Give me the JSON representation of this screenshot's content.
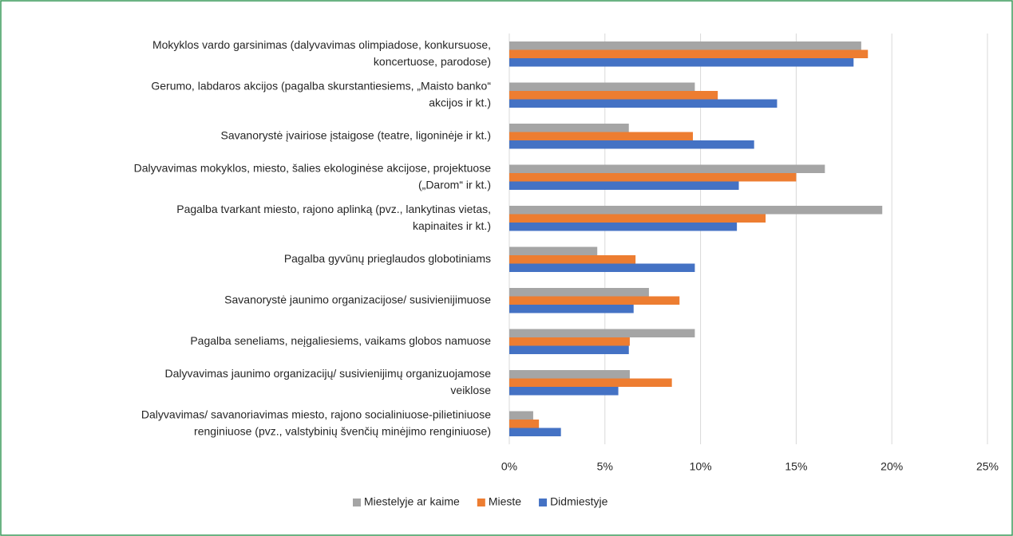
{
  "chart_data": {
    "type": "bar",
    "orientation": "horizontal",
    "categories": [
      [
        "Mokyklos vardo garsinimas (dalyvavimas olimpiadose, konkursuose,",
        "koncertuose, parodose)"
      ],
      [
        "Gerumo, labdaros akcijos (pagalba skurstantiesiems, „Maisto banko“",
        "akcijos ir kt.)"
      ],
      [
        "Savanorystė įvairiose įstaigose (teatre, ligoninėje ir kt.)"
      ],
      [
        "Dalyvavimas mokyklos, miesto, šalies ekologinėse akcijose, projektuose",
        "(„Darom“ ir kt.)"
      ],
      [
        "Pagalba tvarkant miesto, rajono aplinką (pvz., lankytinas vietas,",
        "kapinaites ir kt.)"
      ],
      [
        "Pagalba gyvūnų prieglaudos globotiniams"
      ],
      [
        "Savanorystė jaunimo organizacijose/ susivienijimuose"
      ],
      [
        "Pagalba seneliams, neįgaliesiems, vaikams globos namuose"
      ],
      [
        "Dalyvavimas jaunimo organizacijų/ susivienijimų organizuojamose",
        "veiklose"
      ],
      [
        "Dalyvavimas/ savanoriavimas miesto, rajono socialiniuose-pilietiniuose",
        "renginiuose (pvz., valstybinių švenčių minėjimo renginiuose)"
      ]
    ],
    "series": [
      {
        "name": "Miestelyje ar kaime",
        "color": "#a5a5a5",
        "values": [
          18.4,
          9.7,
          6.25,
          16.5,
          19.5,
          4.6,
          7.3,
          9.7,
          6.3,
          1.25
        ]
      },
      {
        "name": "Mieste",
        "color": "#ed7d31",
        "values": [
          18.75,
          10.9,
          9.6,
          15.0,
          13.4,
          6.6,
          8.9,
          6.3,
          8.5,
          1.55
        ]
      },
      {
        "name": "Didmiestyje",
        "color": "#4472c4",
        "values": [
          18.0,
          14.0,
          12.8,
          12.0,
          11.9,
          9.7,
          6.5,
          6.25,
          5.7,
          2.7
        ]
      }
    ],
    "xlim": [
      0,
      25
    ],
    "xticks": [
      {
        "value": 0,
        "label": "0%"
      },
      {
        "value": 5,
        "label": "5%"
      },
      {
        "value": 10,
        "label": "10%"
      },
      {
        "value": 15,
        "label": "15%"
      },
      {
        "value": 20,
        "label": "20%"
      },
      {
        "value": 25,
        "label": "25%"
      }
    ],
    "grid": true,
    "legend": "bottom"
  }
}
